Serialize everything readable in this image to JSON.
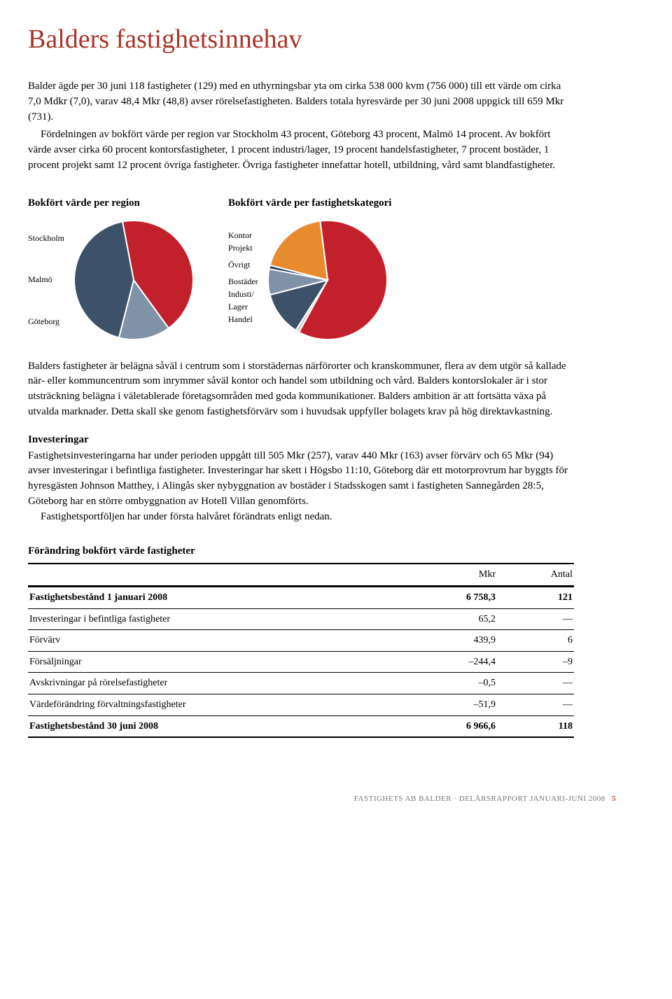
{
  "title": {
    "text": "Balders fastighetsinnehav",
    "color": "#a93528"
  },
  "intro": {
    "p1": "Balder ägde per 30 juni 118 fastigheter (129) med en uthyrningsbar yta om cirka 538 000 kvm (756 000) till ett värde om cirka 7,0 Mdkr (7,0), varav 48,4 Mkr (48,8) avser rörelsefastigheten. Balders totala hyresvärde per 30 juni 2008 uppgick till 659 Mkr (731).",
    "p2": "Fördelningen av bokfört värde per region var Stockholm 43 procent, Göteborg 43 procent, Malmö 14 procent. Av bokfört värde avser cirka 60 procent kontorsfastigheter, 1 procent industri/lager, 19 procent handelsfastigheter, 7 procent bostäder, 1 procent projekt samt 12 procent övriga fastigheter. Övriga fastigheter innefattar hotell, utbildning, vård samt blandfastigheter."
  },
  "chart_region": {
    "title": "Bokfört värde per region",
    "type": "pie",
    "labels": [
      "Stockholm",
      "Malmö",
      "Göteborg"
    ],
    "values": [
      43,
      14,
      43
    ],
    "colors": [
      "#3d5168",
      "#7f92a8",
      "#c3202d"
    ],
    "border": "#ffffff",
    "border_width": 2
  },
  "chart_category": {
    "title": "Bokfört värde per fastighetskategori",
    "type": "pie",
    "labels": [
      "Kontor",
      "Projekt",
      "Övrigt",
      "Bostäder",
      "Industi/",
      "  Lager",
      "Handel"
    ],
    "slices": [
      {
        "label": "Kontor",
        "value": 60,
        "color": "#c3202d"
      },
      {
        "label": "Projekt",
        "value": 1,
        "color": "#cfcfcf"
      },
      {
        "label": "Övrigt",
        "value": 12,
        "color": "#3d5168"
      },
      {
        "label": "Bostäder",
        "value": 7,
        "color": "#7f92a8"
      },
      {
        "label": "Industi/Lager",
        "value": 1,
        "color": "#1b3a52"
      },
      {
        "label": "Handel",
        "value": 19,
        "color": "#e88a2e"
      }
    ],
    "border": "#ffffff",
    "border_width": 2
  },
  "mid_para": "Balders fastigheter är belägna såväl i centrum som i storstädernas närförorter och kranskommuner, flera av dem utgör så kallade när- eller kommuncentrum som inrymmer såväl kontor och handel som utbildning och vård. Balders kontorslokaler är i stor utsträckning belägna i väletablerade företagsområden med goda kommunikationer. Balders ambition är att fortsätta växa på utvalda marknader. Detta skall ske genom fastighetsförvärv som i huvudsak uppfyller bolagets krav på hög direktavkastning.",
  "invest_heading": "Investeringar",
  "invest_p1": "Fastighetsinvesteringarna har under perioden uppgått till 505 Mkr (257), varav 440 Mkr (163) avser förvärv och 65 Mkr (94) avser investeringar i befintliga fastigheter. Investeringar har skett i Högsbo 11:10, Göteborg där ett motorprovrum har byggts för hyresgästen Johnson Matthey, i Alingås sker nybyggnation av bostäder i Stadsskogen samt i fastigheten Sannegården 28:5, Göteborg har en större ombyggnation av Hotell Villan genomförts.",
  "invest_p2": "Fastighetsportföljen har under första halvåret förändrats enligt nedan.",
  "table": {
    "title": "Förändring bokfört värde fastigheter",
    "col_headers": [
      "",
      "Mkr",
      "Antal"
    ],
    "rows": [
      {
        "label": "Fastighetsbestånd 1 januari 2008",
        "mkr": "6 758,3",
        "antal": "121",
        "bold": true
      },
      {
        "label": "Investeringar i befintliga fastigheter",
        "mkr": "65,2",
        "antal": "—"
      },
      {
        "label": "Förvärv",
        "mkr": "439,9",
        "antal": "6"
      },
      {
        "label": "Försäljningar",
        "mkr": "–244,4",
        "antal": "–9"
      },
      {
        "label": "Avskrivningar på rörelsefastigheter",
        "mkr": "–0,5",
        "antal": "—"
      },
      {
        "label": "Värdeförändring förvaltningsfastigheter",
        "mkr": "–51,9",
        "antal": "—"
      },
      {
        "label": "Fastighetsbestånd 30 juni 2008",
        "mkr": "6 966,6",
        "antal": "118",
        "bold": true,
        "last": true
      }
    ]
  },
  "footer": {
    "text": "FASTIGHETS AB BALDER · DELÅRSRAPPORT JANUARI-JUNI 2008",
    "page": "5"
  }
}
